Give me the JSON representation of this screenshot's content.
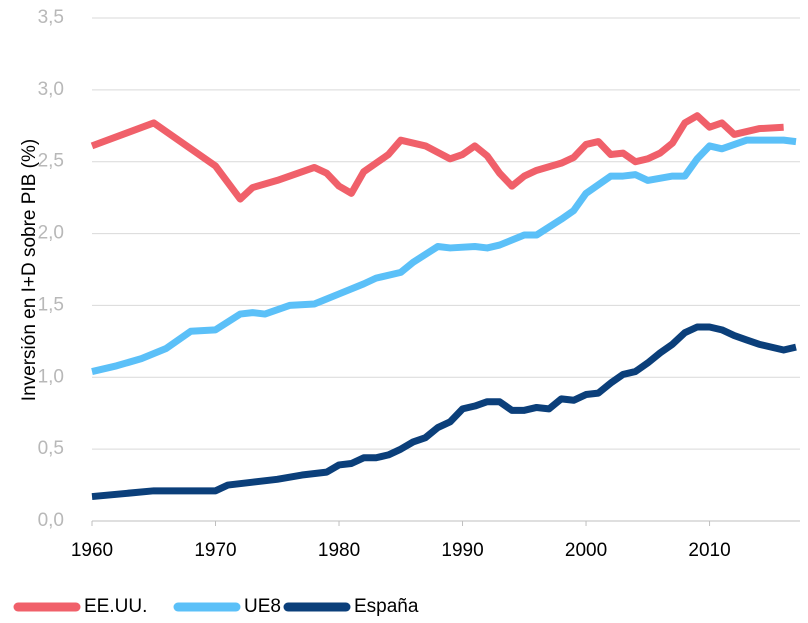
{
  "chart_data": {
    "type": "line",
    "ylabel": "Inversión en I+D sobre PIB (%)",
    "xlim": [
      1960,
      2017
    ],
    "xticks": [
      1960,
      1970,
      1980,
      1990,
      2000,
      2010
    ],
    "ylim": [
      0,
      3.5
    ],
    "yticks": [
      {
        "value": 0,
        "label": "0,0"
      },
      {
        "value": 0.5,
        "label": "0,5"
      },
      {
        "value": 1,
        "label": "1,0"
      },
      {
        "value": 1.5,
        "label": "1,5"
      },
      {
        "value": 2,
        "label": "2,0"
      },
      {
        "value": 2.5,
        "label": "2,5"
      },
      {
        "value": 3,
        "label": "3,0"
      },
      {
        "value": 3.5,
        "label": "3,5"
      }
    ],
    "grid": true,
    "legend": "bottom",
    "series": [
      {
        "name": "EE.UU.",
        "color": "#f0606a",
        "x": [
          1960,
          1965,
          1970,
          1972,
          1973,
          1975,
          1978,
          1979,
          1980,
          1981,
          1982,
          1984,
          1985,
          1987,
          1989,
          1990,
          1991,
          1992,
          1993,
          1994,
          1995,
          1996,
          1998,
          1999,
          2000,
          2001,
          2002,
          2003,
          2004,
          2005,
          2006,
          2007,
          2008,
          2009,
          2010,
          2011,
          2012,
          2013,
          2014,
          2016
        ],
        "values": [
          2.61,
          2.77,
          2.47,
          2.24,
          2.32,
          2.37,
          2.46,
          2.42,
          2.33,
          2.28,
          2.43,
          2.55,
          2.65,
          2.61,
          2.52,
          2.55,
          2.61,
          2.54,
          2.42,
          2.33,
          2.4,
          2.44,
          2.49,
          2.53,
          2.62,
          2.64,
          2.55,
          2.56,
          2.5,
          2.52,
          2.56,
          2.63,
          2.77,
          2.82,
          2.74,
          2.77,
          2.69,
          2.71,
          2.73,
          2.74
        ]
      },
      {
        "name": "UE8",
        "color": "#5bc0f8",
        "x": [
          1960,
          1962,
          1964,
          1966,
          1968,
          1970,
          1972,
          1973,
          1974,
          1976,
          1978,
          1980,
          1982,
          1983,
          1985,
          1986,
          1988,
          1989,
          1991,
          1992,
          1993,
          1995,
          1996,
          1998,
          1999,
          2000,
          2002,
          2003,
          2004,
          2005,
          2007,
          2008,
          2009,
          2010,
          2011,
          2013,
          2014,
          2016,
          2017
        ],
        "values": [
          1.04,
          1.08,
          1.13,
          1.2,
          1.32,
          1.33,
          1.44,
          1.45,
          1.44,
          1.5,
          1.51,
          1.58,
          1.65,
          1.69,
          1.73,
          1.8,
          1.91,
          1.9,
          1.91,
          1.9,
          1.92,
          1.99,
          1.99,
          2.1,
          2.16,
          2.28,
          2.4,
          2.4,
          2.41,
          2.37,
          2.4,
          2.4,
          2.52,
          2.61,
          2.59,
          2.65,
          2.65,
          2.65,
          2.64
        ]
      },
      {
        "name": "España",
        "color": "#0b3f7a",
        "x": [
          1960,
          1965,
          1970,
          1971,
          1973,
          1975,
          1977,
          1979,
          1980,
          1981,
          1982,
          1983,
          1984,
          1985,
          1986,
          1987,
          1988,
          1989,
          1990,
          1991,
          1992,
          1993,
          1994,
          1995,
          1996,
          1997,
          1998,
          1999,
          2000,
          2001,
          2002,
          2003,
          2004,
          2005,
          2006,
          2007,
          2008,
          2009,
          2010,
          2011,
          2012,
          2013,
          2014,
          2015,
          2016,
          2017
        ],
        "values": [
          0.17,
          0.21,
          0.21,
          0.25,
          0.27,
          0.29,
          0.32,
          0.34,
          0.39,
          0.4,
          0.44,
          0.44,
          0.46,
          0.5,
          0.55,
          0.58,
          0.65,
          0.69,
          0.78,
          0.8,
          0.83,
          0.83,
          0.77,
          0.77,
          0.79,
          0.78,
          0.85,
          0.84,
          0.88,
          0.89,
          0.96,
          1.02,
          1.04,
          1.1,
          1.17,
          1.23,
          1.31,
          1.35,
          1.35,
          1.33,
          1.29,
          1.26,
          1.23,
          1.21,
          1.19,
          1.21
        ]
      }
    ]
  }
}
